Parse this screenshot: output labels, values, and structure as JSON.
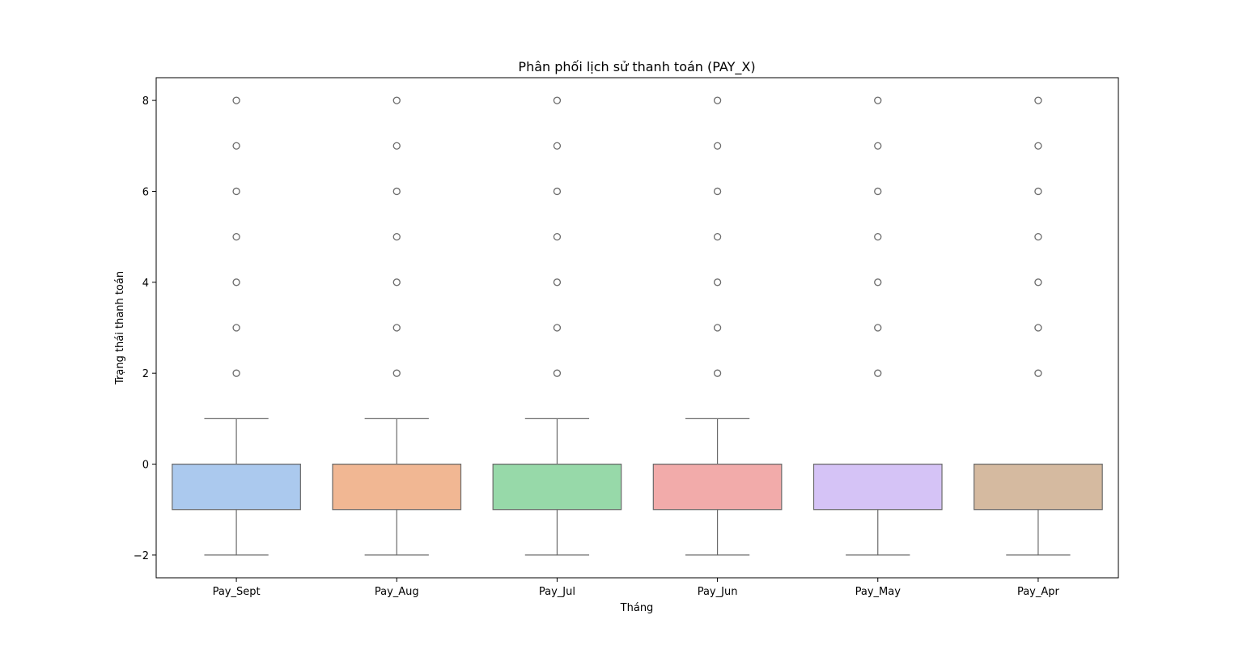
{
  "chart_data": {
    "type": "box",
    "title": "Phân phối lịch sử thanh toán (PAY_X)",
    "xlabel": "Tháng",
    "ylabel": "Trạng thái thanh toán",
    "ylim": [
      -2.5,
      8.5
    ],
    "yticks": [
      -2,
      0,
      2,
      4,
      6,
      8
    ],
    "ytick_labels": [
      "−2",
      "0",
      "2",
      "4",
      "6",
      "8"
    ],
    "grid": false,
    "categories": [
      "Pay_Sept",
      "Pay_Aug",
      "Pay_Jul",
      "Pay_Jun",
      "Pay_May",
      "Pay_Apr"
    ],
    "series": [
      {
        "category": "Pay_Sept",
        "whisker_low": -2,
        "q1": -1,
        "median": 0,
        "q3": 0,
        "whisker_high": 1,
        "outliers": [
          2,
          3,
          4,
          5,
          6,
          7,
          8
        ],
        "color": "#abc9ee"
      },
      {
        "category": "Pay_Aug",
        "whisker_low": -2,
        "q1": -1,
        "median": 0,
        "q3": 0,
        "whisker_high": 1,
        "outliers": [
          2,
          3,
          4,
          5,
          6,
          7,
          8
        ],
        "color": "#f1b793"
      },
      {
        "category": "Pay_Jul",
        "whisker_low": -2,
        "q1": -1,
        "median": 0,
        "q3": 0,
        "whisker_high": 1,
        "outliers": [
          2,
          3,
          4,
          5,
          6,
          7,
          8
        ],
        "color": "#97d9a9"
      },
      {
        "category": "Pay_Jun",
        "whisker_low": -2,
        "q1": -1,
        "median": 0,
        "q3": 0,
        "whisker_high": 1,
        "outliers": [
          2,
          3,
          4,
          5,
          6,
          7,
          8
        ],
        "color": "#f2abaa"
      },
      {
        "category": "Pay_May",
        "whisker_low": -2,
        "q1": -1,
        "median": 0,
        "q3": 0,
        "whisker_high": 0,
        "outliers": [
          2,
          3,
          4,
          5,
          6,
          7,
          8
        ],
        "color": "#d5c3f6"
      },
      {
        "category": "Pay_Apr",
        "whisker_low": -2,
        "q1": -1,
        "median": 0,
        "q3": 0,
        "whisker_high": 0,
        "outliers": [
          2,
          3,
          4,
          5,
          6,
          7,
          8
        ],
        "color": "#d5baa0"
      }
    ],
    "line_color": "#6b6b6b"
  }
}
